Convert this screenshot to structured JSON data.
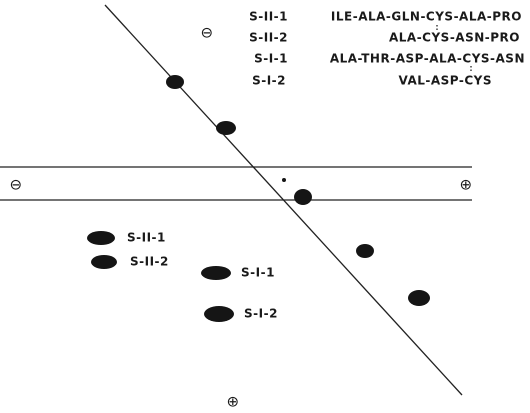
{
  "peptides": [
    {
      "name": "S-II-1",
      "sequence": "ILE-ALA-GLN-CYS-ALA-PRO"
    },
    {
      "name": "S-II-2",
      "sequence": "ALA-CYS-ASN-PRO"
    },
    {
      "name": "S-I-1",
      "sequence": "ALA-THR-ASP-ALA-CYS-ASN"
    },
    {
      "name": "S-I-2",
      "sequence": "VAL-ASP-CYS"
    }
  ],
  "spots": [
    "S-II-1",
    "S-II-2",
    "S-I-1",
    "S-I-2"
  ],
  "symbols": {
    "top_minus": "⊖",
    "left_minus": "⊖",
    "right_plus": "⊕",
    "bottom_plus": "⊕"
  }
}
